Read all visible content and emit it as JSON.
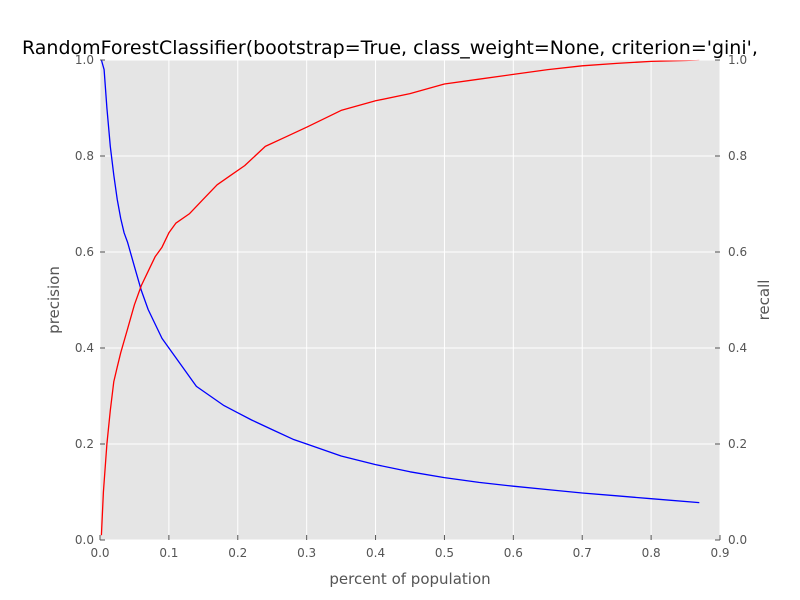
{
  "chart_data": {
    "type": "line",
    "title": "RandomForestClassifier(bootstrap=True, class_weight=None, criterion='gini',",
    "xlabel": "percent of population",
    "ylabel_left": "precision",
    "ylabel_right": "recall",
    "xlim": [
      0.0,
      0.9
    ],
    "ylim_left": [
      0.0,
      1.0
    ],
    "ylim_right": [
      0.0,
      1.0
    ],
    "x_ticks": [
      "0.0",
      "0.1",
      "0.2",
      "0.3",
      "0.4",
      "0.5",
      "0.6",
      "0.7",
      "0.8",
      "0.9"
    ],
    "y_ticks_left": [
      "0.0",
      "0.2",
      "0.4",
      "0.6",
      "0.8",
      "1.0"
    ],
    "y_ticks_right": [
      "0.0",
      "0.2",
      "0.4",
      "0.6",
      "0.8",
      "1.0"
    ],
    "grid": true,
    "colors": {
      "precision": "#0000ff",
      "recall": "#ff0000",
      "plot_background": "#e5e5e5",
      "grid": "#ffffff"
    },
    "series": [
      {
        "axis": "left",
        "x": [
          0.002,
          0.006,
          0.01,
          0.015,
          0.02,
          0.025,
          0.03,
          0.035,
          0.04,
          0.05,
          0.06,
          0.07,
          0.08,
          0.09,
          0.1,
          0.12,
          0.14,
          0.16,
          0.18,
          0.2,
          0.22,
          0.25,
          0.28,
          0.3,
          0.35,
          0.4,
          0.45,
          0.5,
          0.55,
          0.6,
          0.65,
          0.7,
          0.75,
          0.8,
          0.87
        ],
        "y": [
          1.0,
          0.98,
          0.9,
          0.82,
          0.76,
          0.71,
          0.67,
          0.64,
          0.62,
          0.57,
          0.52,
          0.48,
          0.45,
          0.42,
          0.4,
          0.36,
          0.32,
          0.3,
          0.28,
          0.265,
          0.25,
          0.23,
          0.21,
          0.2,
          0.175,
          0.157,
          0.142,
          0.13,
          0.12,
          0.112,
          0.105,
          0.098,
          0.092,
          0.086,
          0.078
        ]
      },
      {
        "axis": "right",
        "x": [
          0.002,
          0.005,
          0.01,
          0.015,
          0.02,
          0.025,
          0.03,
          0.04,
          0.05,
          0.06,
          0.07,
          0.08,
          0.09,
          0.1,
          0.11,
          0.13,
          0.15,
          0.17,
          0.19,
          0.21,
          0.24,
          0.27,
          0.3,
          0.35,
          0.4,
          0.45,
          0.5,
          0.55,
          0.6,
          0.65,
          0.7,
          0.75,
          0.8,
          0.85,
          0.87
        ],
        "y": [
          0.01,
          0.1,
          0.2,
          0.27,
          0.33,
          0.36,
          0.39,
          0.44,
          0.49,
          0.53,
          0.56,
          0.59,
          0.61,
          0.64,
          0.66,
          0.68,
          0.71,
          0.74,
          0.76,
          0.78,
          0.82,
          0.84,
          0.86,
          0.895,
          0.915,
          0.93,
          0.95,
          0.96,
          0.97,
          0.98,
          0.988,
          0.993,
          0.997,
          0.999,
          1.0
        ]
      }
    ]
  }
}
